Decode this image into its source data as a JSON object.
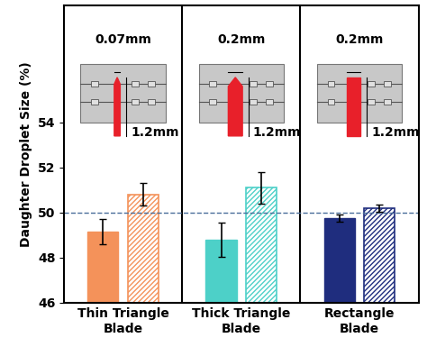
{
  "chart_data": {
    "type": "bar",
    "y_label": "Daughter Droplet Size (%)",
    "categories": [
      "Thin Triangle Blade",
      "Thick Triangle Blade",
      "Rectangle Blade"
    ],
    "series": [
      {
        "values": [
          49.15,
          48.8,
          49.75
        ],
        "errors": [
          0.55,
          0.75,
          0.15
        ],
        "colors": [
          "#f4925a",
          "#4dd0c8",
          "#1f2d7e"
        ]
      },
      {
        "values": [
          50.8,
          51.1,
          50.2
        ],
        "errors": [
          0.5,
          0.7,
          0.15
        ],
        "colors": [
          "#f4925a",
          "#4dd0c8",
          "#1f2d7e"
        ]
      }
    ],
    "reference_line": 50,
    "insets": [
      {
        "shape": "thin_triangle",
        "width_label": "0.07mm",
        "length_label": "1.2mm"
      },
      {
        "shape": "thick_triangle",
        "width_label": "0.2mm",
        "length_label": "1.2mm"
      },
      {
        "shape": "rectangle",
        "width_label": "0.2mm",
        "length_label": "1.2mm"
      }
    ],
    "ylim": [
      46,
      59.2
    ],
    "yticks": [
      46,
      48,
      50,
      52,
      54
    ],
    "grid": false
  }
}
